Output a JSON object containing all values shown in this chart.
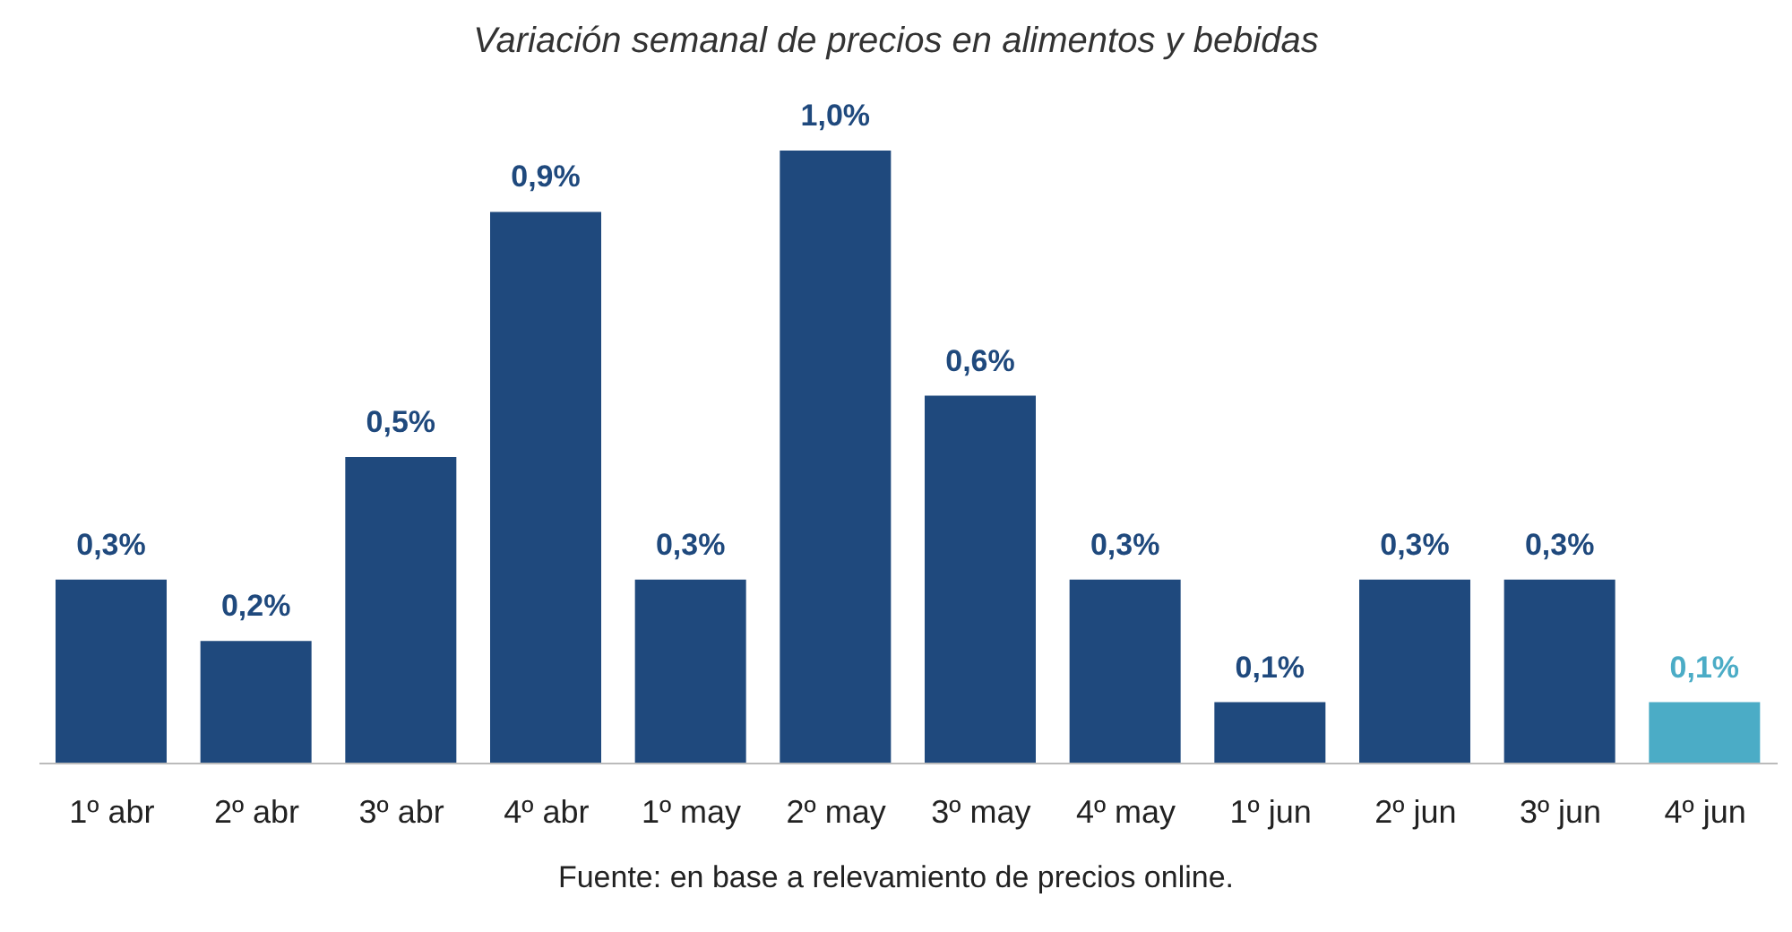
{
  "chart_data": {
    "type": "bar",
    "title": "Variación semanal de precios en alimentos y bebidas",
    "categories": [
      "1º abr",
      "2º abr",
      "3º abr",
      "4º abr",
      "1º may",
      "2º may",
      "3º may",
      "4º may",
      "1º jun",
      "2º jun",
      "3º jun",
      "4º jun"
    ],
    "values": [
      0.3,
      0.2,
      0.5,
      0.9,
      0.3,
      1.0,
      0.6,
      0.3,
      0.1,
      0.3,
      0.3,
      0.1
    ],
    "value_labels": [
      "0,3%",
      "0,2%",
      "0,5%",
      "0,9%",
      "0,3%",
      "1,0%",
      "0,6%",
      "0,3%",
      "0,1%",
      "0,3%",
      "0,3%",
      "0,1%"
    ],
    "colors": [
      "#1f497d",
      "#1f497d",
      "#1f497d",
      "#1f497d",
      "#1f497d",
      "#1f497d",
      "#1f497d",
      "#1f497d",
      "#1f497d",
      "#1f497d",
      "#1f497d",
      "#4bacc6"
    ],
    "annotations": [
      "Fuente: en base a relevamiento de precios online."
    ],
    "grid": false
  }
}
